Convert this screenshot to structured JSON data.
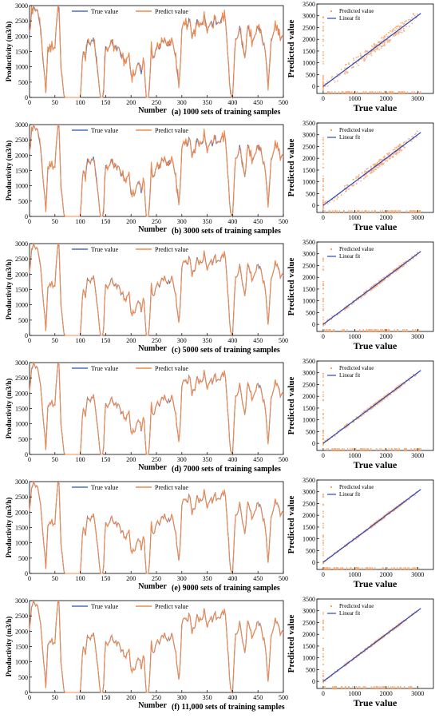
{
  "colors": {
    "true_line": "#4a6fc4",
    "predict_line": "#f08a4b",
    "fit_line": "#2b45b8",
    "scatter": "#f5a56e"
  },
  "captions": [
    "(a) 1000 sets of training samples",
    "(b) 3000 sets of training samples",
    "(c) 5000 sets of training samples",
    "(d) 7000 sets of training samples",
    "(e) 9000 sets of training samples",
    "(f) 11,000 sets of training samples"
  ],
  "chart_data": [
    {
      "type": "line",
      "xlabel": "Number",
      "ylabel": "Productivity (m3/h)",
      "xlim": [
        0,
        500
      ],
      "ylim": [
        0,
        3000
      ],
      "xticks": [
        0,
        50,
        100,
        150,
        200,
        250,
        300,
        350,
        400,
        450,
        500
      ],
      "yticks": [
        0,
        500,
        1000,
        1500,
        2000,
        2500,
        3000
      ],
      "legend": "top-left",
      "series": [
        {
          "name": "True value"
        },
        {
          "name": "Predict value"
        }
      ],
      "true_profile": {
        "x": [
          0,
          5,
          10,
          15,
          20,
          25,
          28,
          32,
          36,
          40,
          45,
          50,
          55,
          58,
          62,
          66,
          70,
          75,
          80,
          90,
          95,
          100,
          105,
          110,
          115,
          120,
          125,
          130,
          135,
          140,
          145,
          150,
          155,
          160,
          165,
          170,
          175,
          180,
          185,
          190,
          195,
          200,
          205,
          210,
          215,
          220,
          225,
          230,
          235,
          240,
          245,
          250,
          255,
          260,
          265,
          270,
          275,
          280,
          285,
          290,
          295,
          300,
          305,
          310,
          315,
          320,
          325,
          330,
          335,
          340,
          345,
          350,
          355,
          360,
          365,
          370,
          375,
          380,
          385,
          390,
          395,
          400,
          405,
          410,
          415,
          420,
          425,
          430,
          435,
          440,
          445,
          450,
          455,
          460,
          465,
          470,
          475,
          480,
          485,
          490,
          495,
          500
        ],
        "y": [
          2000,
          2950,
          2900,
          2850,
          2500,
          1600,
          1000,
          200,
          1500,
          1700,
          1650,
          1600,
          2950,
          2900,
          1000,
          300,
          0,
          0,
          0,
          0,
          0,
          0,
          1500,
          1300,
          1900,
          1700,
          2000,
          1500,
          700,
          0,
          0,
          1700,
          1500,
          1850,
          1700,
          1600,
          1650,
          1400,
          1300,
          1100,
          1500,
          750,
          700,
          900,
          1200,
          800,
          1300,
          0,
          0,
          1600,
          1200,
          1700,
          1600,
          1800,
          1900,
          1750,
          1700,
          1900,
          1600,
          1000,
          300,
          2200,
          2500,
          2300,
          2600,
          2000,
          2100,
          2500,
          2350,
          2400,
          2700,
          2100,
          2450,
          2350,
          2600,
          2400,
          2450,
          2600,
          2700,
          1600,
          200,
          0,
          1800,
          2000,
          2300,
          1600,
          1300,
          2400,
          2000,
          1800,
          2100,
          2300,
          2200,
          1800,
          1500,
          300,
          1700,
          2100,
          2400,
          2200,
          1900,
          2000
        ]
      },
      "predict_offsets_by_panel": [
        [
          180,
          -120,
          220,
          -160,
          90,
          -200,
          150,
          -80
        ],
        [
          120,
          -150,
          160,
          -90,
          140,
          -60,
          110,
          -130
        ],
        [
          50,
          -40,
          60,
          -30,
          45,
          -55,
          35,
          -25
        ],
        [
          40,
          -30,
          50,
          -45,
          30,
          -35,
          45,
          -20
        ],
        [
          30,
          -25,
          35,
          -30,
          20,
          -40,
          25,
          -15
        ],
        [
          25,
          -20,
          30,
          -25,
          20,
          -30,
          15,
          -20
        ]
      ]
    },
    {
      "type": "scatter",
      "xlabel": "True value",
      "ylabel": "Predicted value",
      "xlim": [
        -200,
        3500
      ],
      "ylim": [
        -300,
        3500
      ],
      "xticks": [
        0,
        1000,
        2000,
        3000
      ],
      "yticks": [
        0,
        500,
        1000,
        1500,
        2000,
        2500,
        3000,
        3500
      ],
      "legend": "top-left",
      "series": [
        {
          "name": "Predicted value"
        },
        {
          "name": "Linear fit"
        }
      ],
      "fit": {
        "slope": 1.0,
        "intercept": 0,
        "x": [
          0,
          3100
        ]
      },
      "scatter_spread_by_panel": [
        380,
        280,
        120,
        110,
        90,
        80
      ]
    }
  ]
}
